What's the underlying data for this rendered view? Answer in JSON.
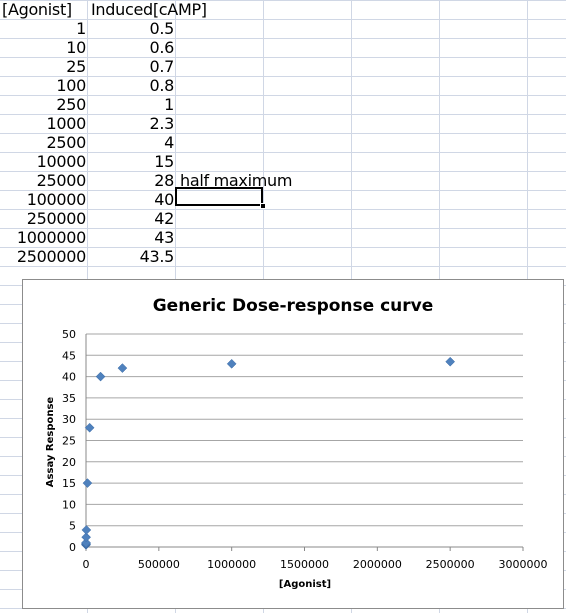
{
  "table": {
    "header_a": "[Agonist]",
    "header_b": "Induced[cAMP]",
    "rows": [
      {
        "a": "1",
        "b": "0.5"
      },
      {
        "a": "10",
        "b": "0.6"
      },
      {
        "a": "25",
        "b": "0.7"
      },
      {
        "a": "100",
        "b": "0.8"
      },
      {
        "a": "250",
        "b": "1"
      },
      {
        "a": "1000",
        "b": "2.3"
      },
      {
        "a": "2500",
        "b": "4"
      },
      {
        "a": "10000",
        "b": "15"
      },
      {
        "a": "25000",
        "b": "28"
      },
      {
        "a": "100000",
        "b": "40"
      },
      {
        "a": "250000",
        "b": "42"
      },
      {
        "a": "1000000",
        "b": "43"
      },
      {
        "a": "2500000",
        "b": "43.5"
      }
    ],
    "note": "half maximum"
  },
  "chart_data": {
    "type": "scatter",
    "title": "Generic Dose-response curve",
    "xlabel": "[Agonist]",
    "ylabel": "Assay Response",
    "xlim": [
      0,
      3000000
    ],
    "ylim": [
      0,
      50
    ],
    "xticks": [
      "0",
      "500000",
      "1000000",
      "1500000",
      "2000000",
      "2500000",
      "3000000"
    ],
    "yticks": [
      "0",
      "5",
      "10",
      "15",
      "20",
      "25",
      "30",
      "35",
      "40",
      "45",
      "50"
    ],
    "grid": true,
    "marker_color": "#4f81bd",
    "series": [
      {
        "x": [
          1,
          10,
          25,
          100,
          250,
          1000,
          2500,
          10000,
          25000,
          100000,
          250000,
          1000000,
          2500000
        ],
        "y": [
          0.5,
          0.6,
          0.7,
          0.8,
          1,
          2.3,
          4,
          15,
          28,
          40,
          42,
          43,
          43.5
        ]
      }
    ]
  }
}
